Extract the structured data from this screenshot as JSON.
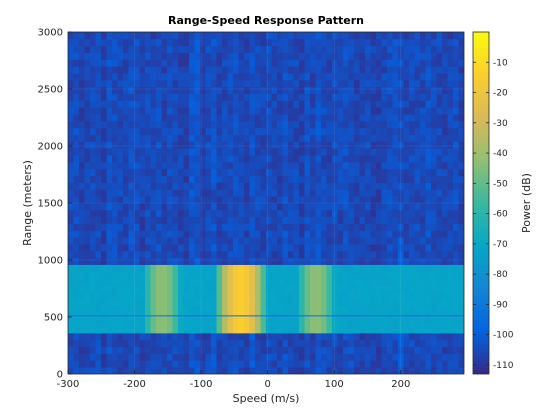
{
  "chart_data": {
    "type": "heatmap",
    "title": "Range-Speed Response Pattern",
    "xlabel": "Speed (m/s)",
    "ylabel": "Range (meters)",
    "xlim": [
      -300,
      295
    ],
    "ylim": [
      0,
      3000
    ],
    "x_ticks": [
      -300,
      -200,
      -100,
      0,
      100,
      200
    ],
    "y_ticks": [
      0,
      500,
      1000,
      1500,
      2000,
      2500,
      3000
    ],
    "colorbar": {
      "label": "Power (dB)",
      "range": [
        -113,
        0
      ],
      "ticks": [
        -10,
        -20,
        -30,
        -40,
        -50,
        -60,
        -70,
        -80,
        -90,
        -100,
        -110
      ],
      "colormap": "parula"
    },
    "noise_floor_db": -105,
    "target_band": {
      "range_min": 380,
      "range_max": 980,
      "base_db": -72,
      "center_line_range": 510
    },
    "peaks": [
      {
        "speed": -40,
        "power_db": -15
      },
      {
        "speed": -158,
        "power_db": -43
      },
      {
        "speed": 73,
        "power_db": -43
      }
    ]
  }
}
